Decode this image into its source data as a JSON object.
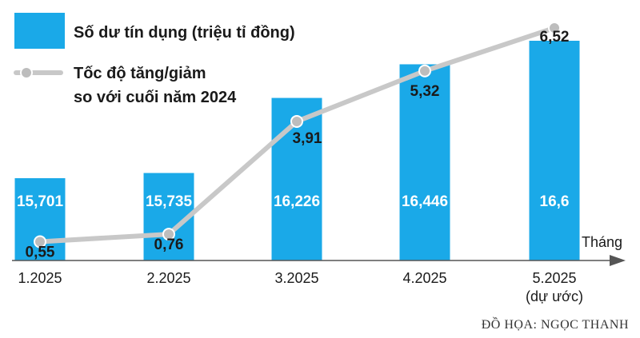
{
  "chart_data": {
    "type": "bar",
    "categories": [
      "1.2025",
      "2.2025",
      "3.2025",
      "4.2025",
      "5.2025"
    ],
    "category_notes": [
      "",
      "",
      "",
      "",
      "(dự ước)"
    ],
    "series": [
      {
        "name": "Số dư tín dụng (triệu tỉ đồng)",
        "type": "bar",
        "values": [
          15.701,
          15.735,
          16.226,
          16.446,
          16.6
        ],
        "labels": [
          "15,701",
          "15,735",
          "16,226",
          "16,446",
          "16,6"
        ]
      },
      {
        "name": "Tốc độ tăng/giảm so với cuối năm 2024",
        "name_lines": [
          "Tốc độ tăng/giảm",
          "so với cuối năm 2024"
        ],
        "type": "line",
        "values": [
          0.55,
          0.76,
          3.91,
          5.32,
          6.52
        ],
        "labels": [
          "0,55",
          "0,76",
          "3,91",
          "5,32",
          "6,52"
        ]
      }
    ],
    "xlabel": "Tháng",
    "ylabel": "",
    "colors": {
      "bar": "#1aa9e8",
      "line": "#c8c8c8",
      "marker": "#bdbdbd",
      "axis": "#555555",
      "text": "#1a1a1a",
      "bar_label": "#ffffff"
    },
    "legend_position": "top-left"
  },
  "credit": "ĐỒ HỌA: NGỌC THANH"
}
